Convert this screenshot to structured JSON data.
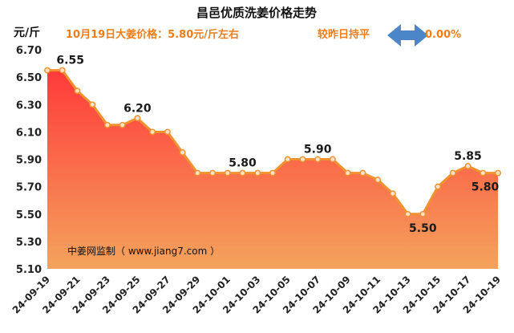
{
  "chart_data": {
    "type": "area",
    "title": "昌邑优质洗姜价格走势",
    "unit_label": "元/斤",
    "subtitle_left": "10月19日大姜价格：5.80元/斤左右",
    "subtitle_right_prefix": "较昨日持平",
    "subtitle_right_change": "0.00%",
    "watermark": "中姜网监制（ www.jiang7.com ）",
    "ylim": [
      5.1,
      6.7
    ],
    "yticks": [
      "5.10",
      "5.30",
      "5.50",
      "5.70",
      "5.90",
      "6.10",
      "6.30",
      "6.50",
      "6.70"
    ],
    "x": [
      "24-09-19",
      "24-09-20",
      "24-09-21",
      "24-09-22",
      "24-09-23",
      "24-09-24",
      "24-09-25",
      "24-09-26",
      "24-09-27",
      "24-09-28",
      "24-09-29",
      "24-09-30",
      "24-10-01",
      "24-10-02",
      "24-10-03",
      "24-10-04",
      "24-10-05",
      "24-10-06",
      "24-10-07",
      "24-10-08",
      "24-10-09",
      "24-10-10",
      "24-10-11",
      "24-10-12",
      "24-10-13",
      "24-10-14",
      "24-10-15",
      "24-10-16",
      "24-10-17",
      "24-10-18",
      "24-10-19"
    ],
    "xtick_labels": [
      "24-09-19",
      "24-09-21",
      "24-09-23",
      "24-09-25",
      "24-09-27",
      "24-09-29",
      "24-10-01",
      "24-10-03",
      "24-10-05",
      "24-10-07",
      "24-10-09",
      "24-10-11",
      "24-10-13",
      "24-10-15",
      "24-10-17",
      "24-10-19"
    ],
    "values": [
      6.55,
      6.55,
      6.4,
      6.3,
      6.15,
      6.15,
      6.2,
      6.1,
      6.1,
      5.95,
      5.8,
      5.8,
      5.8,
      5.8,
      5.8,
      5.8,
      5.9,
      5.9,
      5.9,
      5.9,
      5.8,
      5.8,
      5.75,
      5.65,
      5.5,
      5.5,
      5.7,
      5.8,
      5.85,
      5.8,
      5.8
    ],
    "data_labels": [
      {
        "index": 1,
        "text": "6.55",
        "place": "above"
      },
      {
        "index": 6,
        "text": "6.20",
        "place": "above"
      },
      {
        "index": 13,
        "text": "5.80",
        "place": "above"
      },
      {
        "index": 18,
        "text": "5.90",
        "place": "above"
      },
      {
        "index": 25,
        "text": "5.50",
        "place": "below"
      },
      {
        "index": 28,
        "text": "5.85",
        "place": "above"
      },
      {
        "index": 30,
        "text": "5.80",
        "place": "below"
      }
    ],
    "colors": {
      "line": "#f0922f",
      "marker_fill": "#fde3c8",
      "area_top": "#ff3a3a",
      "area_bottom": "#f4a35c",
      "arrow": "#4a86c8",
      "subtitle": "#ee7d1a"
    },
    "grid": false,
    "legend": "none"
  }
}
